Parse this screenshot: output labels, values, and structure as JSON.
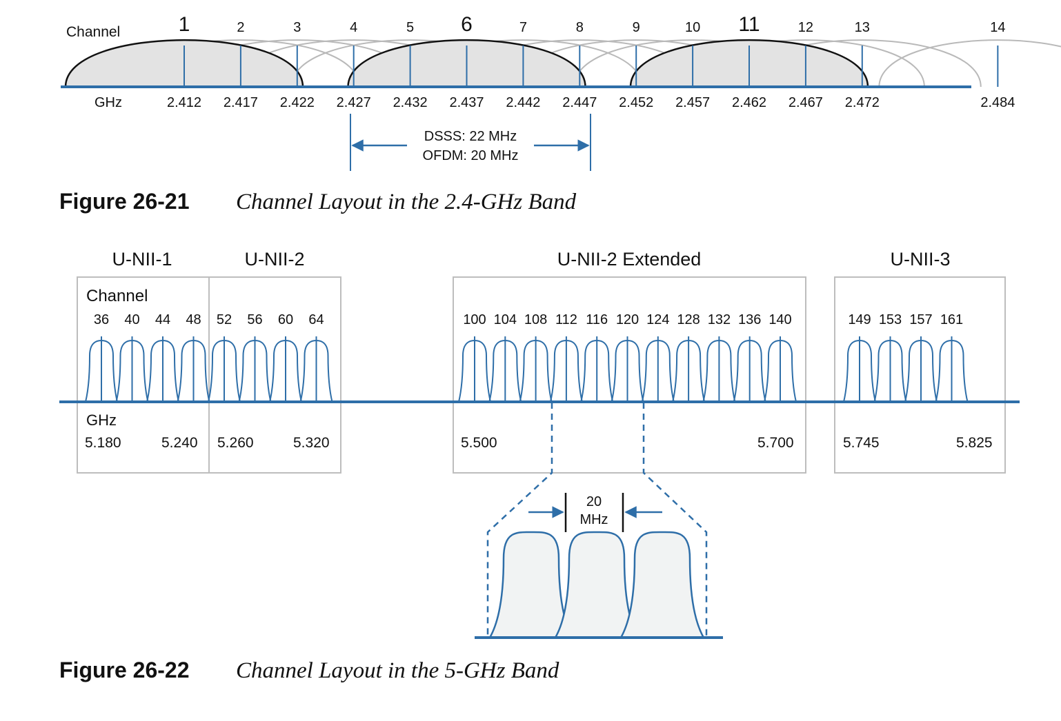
{
  "colors": {
    "blue": "#2e6ea8",
    "gray_arc": "#b9b9b9",
    "lobe_fill": "#e3e3e3",
    "box_stroke": "#bdbdbd",
    "inset_fill": "#f1f3f3",
    "text": "#111111"
  },
  "fig21": {
    "channel_label": "Channel",
    "ghz_label": "GHz",
    "channels": [
      {
        "num": "1",
        "freq": "2.412",
        "nonoverlap": true
      },
      {
        "num": "2",
        "freq": "2.417",
        "nonoverlap": false
      },
      {
        "num": "3",
        "freq": "2.422",
        "nonoverlap": false
      },
      {
        "num": "4",
        "freq": "2.427",
        "nonoverlap": false
      },
      {
        "num": "5",
        "freq": "2.432",
        "nonoverlap": false
      },
      {
        "num": "6",
        "freq": "2.437",
        "nonoverlap": true
      },
      {
        "num": "7",
        "freq": "2.442",
        "nonoverlap": false
      },
      {
        "num": "8",
        "freq": "2.447",
        "nonoverlap": false
      },
      {
        "num": "9",
        "freq": "2.452",
        "nonoverlap": false
      },
      {
        "num": "10",
        "freq": "2.457",
        "nonoverlap": false
      },
      {
        "num": "11",
        "freq": "2.462",
        "nonoverlap": true
      },
      {
        "num": "12",
        "freq": "2.467",
        "nonoverlap": false
      },
      {
        "num": "13",
        "freq": "2.472",
        "nonoverlap": false
      },
      {
        "num": "14",
        "freq": "2.484",
        "nonoverlap": false
      }
    ],
    "width_line1": "DSSS: 22 MHz",
    "width_line2": "OFDM: 20 MHz",
    "caption_label": "Figure 26-21",
    "caption_text": "Channel Layout in the 2.4-GHz Band"
  },
  "fig22": {
    "bands": [
      {
        "name": "U-NII-1",
        "channels": [
          "36",
          "40",
          "44",
          "48"
        ],
        "freq_start": "5.180",
        "freq_end": "5.240"
      },
      {
        "name": "U-NII-2",
        "channels": [
          "52",
          "56",
          "60",
          "64"
        ],
        "freq_start": "5.260",
        "freq_end": "5.320"
      },
      {
        "name": "U-NII-2 Extended",
        "channels": [
          "100",
          "104",
          "108",
          "112",
          "116",
          "120",
          "124",
          "128",
          "132",
          "136",
          "140"
        ],
        "freq_start": "5.500",
        "freq_end": "5.700"
      },
      {
        "name": "U-NII-3",
        "channels": [
          "149",
          "153",
          "157",
          "161"
        ],
        "freq_start": "5.745",
        "freq_end": "5.825"
      }
    ],
    "channel_label": "Channel",
    "ghz_label": "GHz",
    "inset_line1": "20",
    "inset_line2": "MHz",
    "caption_label": "Figure 26-22",
    "caption_text": "Channel Layout in the 5-GHz Band"
  }
}
